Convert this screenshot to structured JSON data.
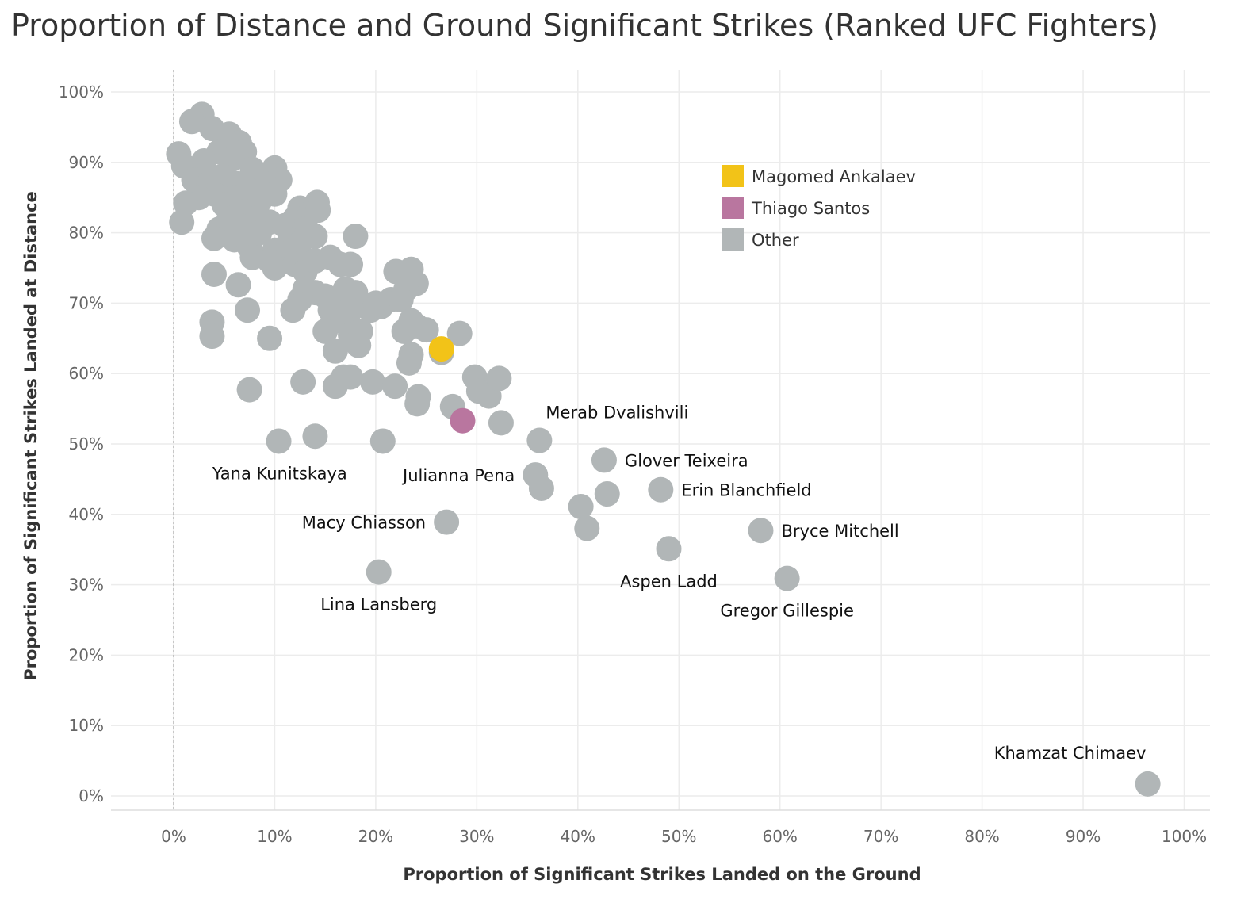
{
  "chart_data": {
    "type": "scatter",
    "title": "Proportion of Distance and Ground Significant Strikes (Ranked UFC Fighters)",
    "xlabel": "Proportion of Significant Strikes Landed on the Ground",
    "ylabel": "Proportion of Significant Strikes Landed at Distance",
    "xlim": [
      -0.06,
      1.02
    ],
    "ylim": [
      -0.02,
      1.04
    ],
    "x_ticks": [
      "0%",
      "10%",
      "20%",
      "30%",
      "40%",
      "50%",
      "60%",
      "70%",
      "80%",
      "90%",
      "100%"
    ],
    "y_ticks": [
      "0%",
      "10%",
      "20%",
      "30%",
      "40%",
      "50%",
      "60%",
      "70%",
      "80%",
      "90%",
      "100%"
    ],
    "grid": true,
    "legend_position": "top-center",
    "legend": [
      {
        "name": "Magomed Ankalaev",
        "color": "#f2c318"
      },
      {
        "name": "Thiago Santos",
        "color": "#b9769f"
      },
      {
        "name": "Other",
        "color": "#b1b6b7"
      }
    ],
    "highlight": [
      {
        "name": "Magomed Ankalaev",
        "x": 0.265,
        "y": 0.635,
        "color": "#f2c318"
      },
      {
        "name": "Thiago Santos",
        "x": 0.286,
        "y": 0.533,
        "color": "#b9769f"
      }
    ],
    "labeled_points": [
      {
        "name": "Merab Dvalishvili",
        "x": 0.362,
        "y": 0.505,
        "anchor": "above-right"
      },
      {
        "name": "Glover Teixeira",
        "x": 0.426,
        "y": 0.477,
        "anchor": "right"
      },
      {
        "name": "Erin Blanchfield",
        "x": 0.482,
        "y": 0.435,
        "anchor": "right"
      },
      {
        "name": "Bryce Mitchell",
        "x": 0.581,
        "y": 0.377,
        "anchor": "right"
      },
      {
        "name": "Aspen Ladd",
        "x": 0.49,
        "y": 0.351,
        "anchor": "below"
      },
      {
        "name": "Gregor Gillespie",
        "x": 0.607,
        "y": 0.309,
        "anchor": "below"
      },
      {
        "name": "Julianna Pena",
        "x": 0.358,
        "y": 0.456,
        "anchor": "left"
      },
      {
        "name": "Yana Kunitskaya",
        "x": 0.105,
        "y": 0.504,
        "anchor": "below"
      },
      {
        "name": "Macy Chiasson",
        "x": 0.27,
        "y": 0.389,
        "anchor": "left"
      },
      {
        "name": "Lina Lansberg",
        "x": 0.203,
        "y": 0.318,
        "anchor": "below"
      },
      {
        "name": "Khamzat Chimaev",
        "x": 0.964,
        "y": 0.017,
        "anchor": "above"
      }
    ],
    "series": [
      {
        "name": "Other",
        "color": "#b1b6b7",
        "points": [
          [
            0.028,
            0.968
          ],
          [
            0.018,
            0.958
          ],
          [
            0.038,
            0.948
          ],
          [
            0.055,
            0.94
          ],
          [
            0.005,
            0.912
          ],
          [
            0.01,
            0.895
          ],
          [
            0.065,
            0.928
          ],
          [
            0.07,
            0.915
          ],
          [
            0.045,
            0.915
          ],
          [
            0.03,
            0.902
          ],
          [
            0.058,
            0.905
          ],
          [
            0.078,
            0.89
          ],
          [
            0.1,
            0.892
          ],
          [
            0.105,
            0.875
          ],
          [
            0.09,
            0.87
          ],
          [
            0.02,
            0.875
          ],
          [
            0.035,
            0.87
          ],
          [
            0.048,
            0.88
          ],
          [
            0.062,
            0.87
          ],
          [
            0.075,
            0.86
          ],
          [
            0.04,
            0.855
          ],
          [
            0.025,
            0.85
          ],
          [
            0.012,
            0.842
          ],
          [
            0.008,
            0.815
          ],
          [
            0.1,
            0.855
          ],
          [
            0.085,
            0.845
          ],
          [
            0.06,
            0.85
          ],
          [
            0.05,
            0.84
          ],
          [
            0.07,
            0.83
          ],
          [
            0.08,
            0.82
          ],
          [
            0.095,
            0.815
          ],
          [
            0.065,
            0.81
          ],
          [
            0.045,
            0.805
          ],
          [
            0.055,
            0.82
          ],
          [
            0.04,
            0.792
          ],
          [
            0.06,
            0.79
          ],
          [
            0.075,
            0.78
          ],
          [
            0.085,
            0.8
          ],
          [
            0.11,
            0.81
          ],
          [
            0.12,
            0.82
          ],
          [
            0.125,
            0.835
          ],
          [
            0.135,
            0.828
          ],
          [
            0.142,
            0.843
          ],
          [
            0.143,
            0.832
          ],
          [
            0.13,
            0.805
          ],
          [
            0.14,
            0.795
          ],
          [
            0.115,
            0.79
          ],
          [
            0.125,
            0.785
          ],
          [
            0.1,
            0.775
          ],
          [
            0.11,
            0.77
          ],
          [
            0.078,
            0.765
          ],
          [
            0.095,
            0.76
          ],
          [
            0.1,
            0.75
          ],
          [
            0.12,
            0.755
          ],
          [
            0.13,
            0.745
          ],
          [
            0.14,
            0.76
          ],
          [
            0.155,
            0.765
          ],
          [
            0.165,
            0.755
          ],
          [
            0.175,
            0.755
          ],
          [
            0.18,
            0.795
          ],
          [
            0.04,
            0.741
          ],
          [
            0.064,
            0.726
          ],
          [
            0.073,
            0.69
          ],
          [
            0.038,
            0.673
          ],
          [
            0.038,
            0.653
          ],
          [
            0.095,
            0.65
          ],
          [
            0.118,
            0.69
          ],
          [
            0.125,
            0.705
          ],
          [
            0.13,
            0.72
          ],
          [
            0.14,
            0.715
          ],
          [
            0.15,
            0.71
          ],
          [
            0.16,
            0.705
          ],
          [
            0.17,
            0.72
          ],
          [
            0.18,
            0.715
          ],
          [
            0.175,
            0.69
          ],
          [
            0.155,
            0.69
          ],
          [
            0.165,
            0.675
          ],
          [
            0.15,
            0.66
          ],
          [
            0.16,
            0.632
          ],
          [
            0.175,
            0.655
          ],
          [
            0.185,
            0.66
          ],
          [
            0.183,
            0.64
          ],
          [
            0.195,
            0.69
          ],
          [
            0.2,
            0.7
          ],
          [
            0.205,
            0.695
          ],
          [
            0.215,
            0.705
          ],
          [
            0.22,
            0.745
          ],
          [
            0.235,
            0.748
          ],
          [
            0.24,
            0.728
          ],
          [
            0.23,
            0.72
          ],
          [
            0.225,
            0.705
          ],
          [
            0.228,
            0.66
          ],
          [
            0.235,
            0.675
          ],
          [
            0.24,
            0.668
          ],
          [
            0.25,
            0.662
          ],
          [
            0.265,
            0.63
          ],
          [
            0.283,
            0.657
          ],
          [
            0.235,
            0.627
          ],
          [
            0.233,
            0.615
          ],
          [
            0.075,
            0.577
          ],
          [
            0.128,
            0.588
          ],
          [
            0.16,
            0.582
          ],
          [
            0.168,
            0.595
          ],
          [
            0.175,
            0.595
          ],
          [
            0.197,
            0.588
          ],
          [
            0.219,
            0.582
          ],
          [
            0.242,
            0.567
          ],
          [
            0.241,
            0.557
          ],
          [
            0.276,
            0.553
          ],
          [
            0.298,
            0.595
          ],
          [
            0.302,
            0.575
          ],
          [
            0.312,
            0.568
          ],
          [
            0.322,
            0.593
          ],
          [
            0.324,
            0.53
          ],
          [
            0.104,
            0.504
          ],
          [
            0.14,
            0.511
          ],
          [
            0.207,
            0.504
          ],
          [
            0.362,
            0.505
          ],
          [
            0.426,
            0.477
          ],
          [
            0.358,
            0.456
          ],
          [
            0.364,
            0.437
          ],
          [
            0.482,
            0.435
          ],
          [
            0.429,
            0.429
          ],
          [
            0.403,
            0.411
          ],
          [
            0.409,
            0.38
          ],
          [
            0.27,
            0.389
          ],
          [
            0.581,
            0.377
          ],
          [
            0.49,
            0.351
          ],
          [
            0.607,
            0.309
          ],
          [
            0.203,
            0.318
          ],
          [
            0.964,
            0.017
          ]
        ]
      }
    ]
  }
}
